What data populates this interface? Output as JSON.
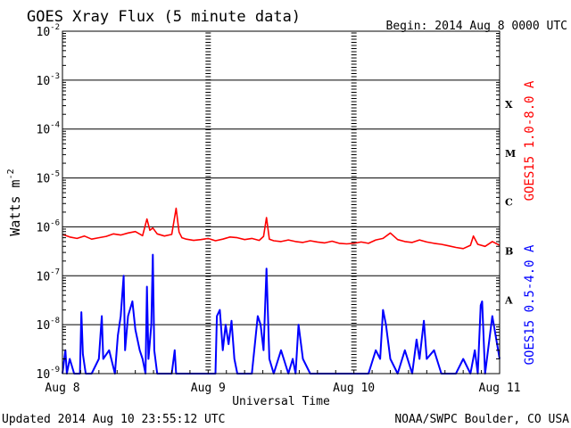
{
  "chart_data": {
    "type": "line",
    "title": "GOES Xray Flux (5 minute data)",
    "begin_label": "Begin:  2014 Aug 8 0000 UTC",
    "xlabel": "Universal Time",
    "ylabel": "Watts m",
    "ylabel_exponent": "-2",
    "x_ticks": [
      "Aug 8",
      "Aug 9",
      "Aug 10",
      "Aug 11"
    ],
    "x_range_days": [
      0,
      3
    ],
    "y_scale": "log",
    "ylim": [
      1e-09,
      0.01
    ],
    "y_ticks": [
      {
        "base": "10",
        "exp": "-9",
        "value": 1e-09
      },
      {
        "base": "10",
        "exp": "-8",
        "value": 1e-08
      },
      {
        "base": "10",
        "exp": "-7",
        "value": 1e-07
      },
      {
        "base": "10",
        "exp": "-6",
        "value": 1e-06
      },
      {
        "base": "10",
        "exp": "-5",
        "value": 1e-05
      },
      {
        "base": "10",
        "exp": "-4",
        "value": 0.0001
      },
      {
        "base": "10",
        "exp": "-3",
        "value": 0.001
      },
      {
        "base": "10",
        "exp": "-2",
        "value": 0.01
      }
    ],
    "flare_classes": [
      {
        "label": "X",
        "value": 0.00032
      },
      {
        "label": "M",
        "value": 3.2e-05
      },
      {
        "label": "C",
        "value": 3.2e-06
      },
      {
        "label": "B",
        "value": 3.2e-07
      },
      {
        "label": "A",
        "value": 3.2e-08
      }
    ],
    "grid": true,
    "series": [
      {
        "name": "GOES15 1.0-8.0 A",
        "color": "#ff0000",
        "x": [
          0.0,
          0.05,
          0.1,
          0.15,
          0.2,
          0.25,
          0.3,
          0.35,
          0.4,
          0.45,
          0.5,
          0.55,
          0.58,
          0.6,
          0.62,
          0.65,
          0.7,
          0.75,
          0.78,
          0.8,
          0.82,
          0.85,
          0.9,
          0.95,
          1.0,
          1.05,
          1.1,
          1.15,
          1.2,
          1.25,
          1.3,
          1.35,
          1.38,
          1.4,
          1.42,
          1.45,
          1.5,
          1.55,
          1.6,
          1.65,
          1.7,
          1.75,
          1.8,
          1.85,
          1.9,
          1.95,
          2.0,
          2.05,
          2.1,
          2.15,
          2.2,
          2.25,
          2.3,
          2.35,
          2.4,
          2.45,
          2.5,
          2.55,
          2.6,
          2.65,
          2.7,
          2.75,
          2.8,
          2.82,
          2.85,
          2.9,
          2.95,
          3.0
        ],
        "values": [
          7e-07,
          6.2e-07,
          5.8e-07,
          6.5e-07,
          5.6e-07,
          6e-07,
          6.4e-07,
          7.2e-07,
          6.8e-07,
          7.5e-07,
          8e-07,
          6.6e-07,
          1.45e-06,
          8.5e-07,
          9.5e-07,
          7.2e-07,
          6.5e-07,
          7e-07,
          2.4e-06,
          7.8e-07,
          6e-07,
          5.6e-07,
          5.3e-07,
          5.5e-07,
          5.8e-07,
          5.2e-07,
          5.6e-07,
          6.2e-07,
          6e-07,
          5.5e-07,
          5.8e-07,
          5.3e-07,
          6.4e-07,
          1.55e-06,
          5.6e-07,
          5.2e-07,
          5e-07,
          5.4e-07,
          5e-07,
          4.8e-07,
          5.2e-07,
          4.9e-07,
          4.7e-07,
          5.1e-07,
          4.6e-07,
          4.5e-07,
          4.6e-07,
          4.9e-07,
          4.6e-07,
          5.4e-07,
          5.8e-07,
          7.5e-07,
          5.5e-07,
          5e-07,
          4.8e-07,
          5.4e-07,
          4.9e-07,
          4.6e-07,
          4.4e-07,
          4.1e-07,
          3.8e-07,
          3.6e-07,
          4.2e-07,
          6.5e-07,
          4.4e-07,
          4e-07,
          5e-07,
          4.2e-07
        ]
      },
      {
        "name": "GOES15 0.5-4.0 A",
        "color": "#0000ff",
        "x": [
          0.0,
          0.02,
          0.03,
          0.05,
          0.08,
          0.12,
          0.13,
          0.14,
          0.16,
          0.2,
          0.25,
          0.27,
          0.28,
          0.32,
          0.36,
          0.38,
          0.4,
          0.42,
          0.43,
          0.45,
          0.48,
          0.5,
          0.53,
          0.55,
          0.57,
          0.58,
          0.59,
          0.61,
          0.62,
          0.63,
          0.65,
          0.7,
          0.75,
          0.77,
          0.78,
          0.79,
          0.82,
          0.9,
          1.0,
          1.05,
          1.06,
          1.08,
          1.1,
          1.12,
          1.14,
          1.16,
          1.18,
          1.2,
          1.25,
          1.3,
          1.34,
          1.36,
          1.38,
          1.4,
          1.42,
          1.45,
          1.5,
          1.55,
          1.58,
          1.6,
          1.62,
          1.65,
          1.7,
          1.8,
          1.9,
          2.0,
          2.1,
          2.15,
          2.18,
          2.2,
          2.22,
          2.25,
          2.3,
          2.35,
          2.4,
          2.43,
          2.45,
          2.48,
          2.5,
          2.55,
          2.6,
          2.7,
          2.75,
          2.8,
          2.83,
          2.85,
          2.87,
          2.88,
          2.9,
          2.95,
          3.0
        ],
        "values": [
          1e-09,
          3e-09,
          1e-09,
          2e-09,
          1e-09,
          1e-09,
          1.8e-08,
          2.5e-09,
          1e-09,
          1e-09,
          2e-09,
          1.5e-08,
          2e-09,
          3e-09,
          1e-09,
          6e-09,
          1.5e-08,
          1e-07,
          3e-09,
          1.5e-08,
          3e-08,
          8e-09,
          3e-09,
          2e-09,
          1e-09,
          6e-08,
          2e-09,
          1e-08,
          2.7e-07,
          3e-09,
          1e-09,
          1e-09,
          1e-09,
          3e-09,
          1e-09,
          1e-09,
          1e-09,
          1e-09,
          1e-09,
          1e-09,
          1.5e-08,
          2e-08,
          3e-09,
          1e-08,
          4e-09,
          1.2e-08,
          2e-09,
          1e-09,
          1e-09,
          1e-09,
          1.5e-08,
          1e-08,
          3e-09,
          1.4e-07,
          2e-09,
          1e-09,
          3e-09,
          1e-09,
          2e-09,
          1e-09,
          1e-08,
          2e-09,
          1e-09,
          1e-09,
          1e-09,
          1e-09,
          1e-09,
          3e-09,
          2e-09,
          2e-08,
          1e-08,
          2e-09,
          1e-09,
          3e-09,
          1e-09,
          5e-09,
          2e-09,
          1.2e-08,
          2e-09,
          3e-09,
          1e-09,
          1e-09,
          2e-09,
          1e-09,
          3e-09,
          1e-09,
          2.5e-08,
          3e-08,
          1e-09,
          1.5e-08,
          2e-09
        ]
      }
    ]
  },
  "footer": {
    "updated": "Updated 2014 Aug 10 23:55:12 UTC",
    "credit": "NOAA/SWPC Boulder, CO USA"
  }
}
